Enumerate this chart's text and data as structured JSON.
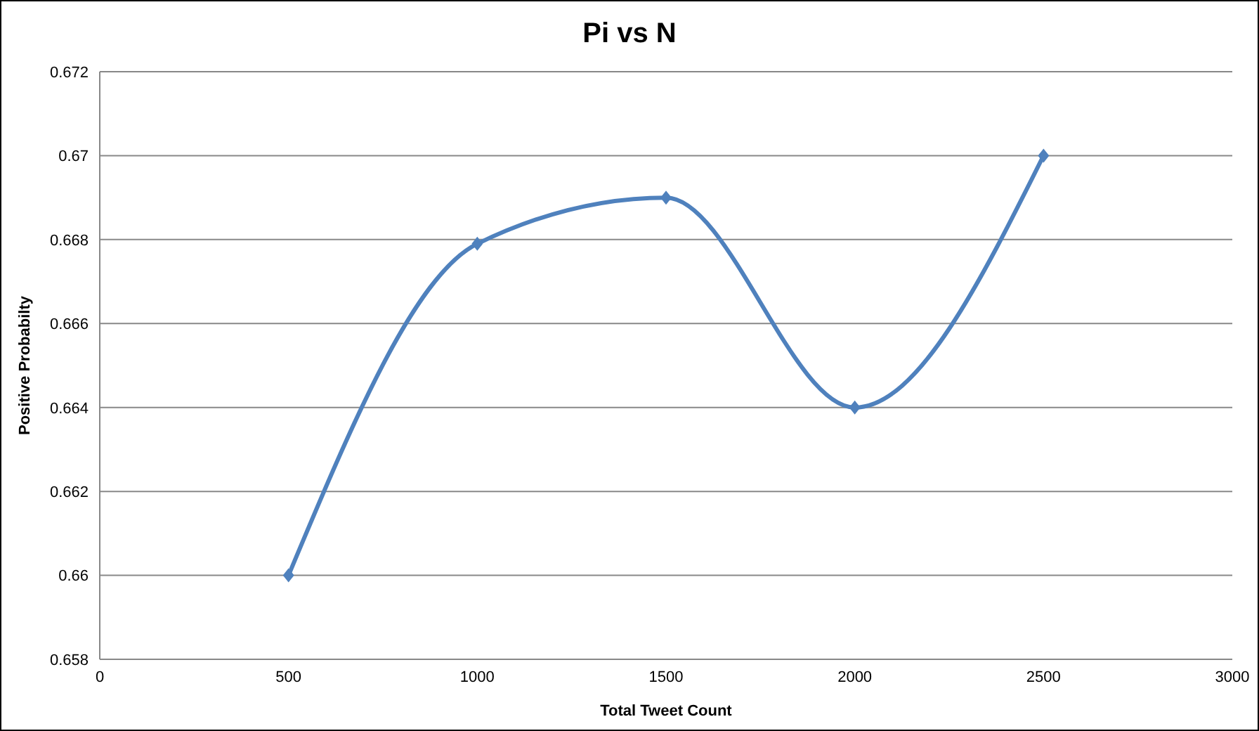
{
  "chart_data": {
    "type": "line",
    "title": "Pi vs N",
    "xlabel": "Total Tweet Count",
    "ylabel": "Positive Probabilty",
    "x": [
      500,
      1000,
      1500,
      2000,
      2500
    ],
    "series": [
      {
        "color": "#4f81bd",
        "values": [
          0.66,
          0.6679,
          0.669,
          0.664,
          0.67
        ]
      }
    ],
    "xlim": [
      0,
      3000
    ],
    "xticks": [
      0,
      500,
      1000,
      1500,
      2000,
      2500,
      3000
    ],
    "ylim": [
      0.658,
      0.672
    ],
    "yticks": [
      0.658,
      0.66,
      0.662,
      0.664,
      0.666,
      0.668,
      0.67,
      0.672
    ],
    "grid": "y",
    "legend": false,
    "marker": "diamond",
    "line_style": "solid"
  }
}
